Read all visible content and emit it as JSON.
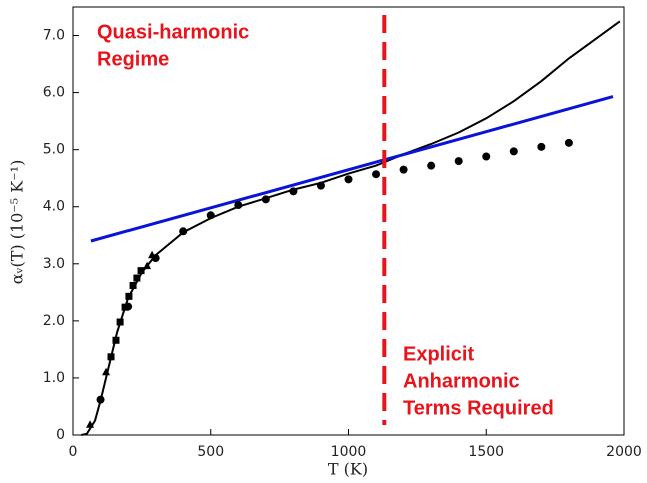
{
  "chart_data": {
    "type": "line",
    "xlabel": "T (K)",
    "ylabel": "αᵥ(T) (10⁻⁵ K⁻¹)",
    "xlim": [
      0,
      2000
    ],
    "ylim": [
      0,
      7.5
    ],
    "xticks": [
      0,
      500,
      1000,
      1500,
      2000
    ],
    "yticks": [
      0,
      {
        "value": 1,
        "label": "1.0"
      },
      {
        "value": 2,
        "label": "2.0"
      },
      {
        "value": 3,
        "label": "3.0"
      },
      {
        "value": 4,
        "label": "4.0"
      },
      {
        "value": 5,
        "label": "5.0"
      },
      {
        "value": 6,
        "label": "6.0"
      },
      {
        "value": 7,
        "label": "7.0"
      }
    ],
    "series": [
      {
        "style": "line",
        "color": "#000000",
        "x": [
          30,
          50,
          80,
          100,
          130,
          160,
          200,
          250,
          300,
          400,
          500,
          600,
          700,
          800,
          900,
          1000,
          1100,
          1200,
          1300,
          1400,
          1500,
          1600,
          1700,
          1800,
          1900,
          1985
        ],
        "values": [
          0,
          0.02,
          0.25,
          0.6,
          1.2,
          1.8,
          2.4,
          2.85,
          3.15,
          3.55,
          3.8,
          4.0,
          4.15,
          4.3,
          4.42,
          4.58,
          4.72,
          4.92,
          5.1,
          5.3,
          5.55,
          5.85,
          6.2,
          6.6,
          6.95,
          7.25
        ]
      },
      {
        "style": "line",
        "color": "#0a14d8",
        "x": [
          65,
          1960
        ],
        "values": [
          3.4,
          5.93
        ]
      },
      {
        "style": "circle",
        "color": "#000000",
        "x": [
          100,
          200,
          300,
          400,
          500,
          600,
          700,
          800,
          900,
          1000,
          1100,
          1200,
          1300,
          1400,
          1500,
          1600,
          1700,
          1800
        ],
        "values": [
          0.62,
          2.25,
          3.1,
          3.57,
          3.85,
          4.03,
          4.13,
          4.27,
          4.37,
          4.48,
          4.57,
          4.65,
          4.72,
          4.8,
          4.88,
          4.97,
          5.05,
          5.12
        ]
      },
      {
        "style": "square",
        "color": "#000000",
        "x": [
          138,
          156,
          171,
          189,
          203,
          218,
          232,
          247
        ],
        "values": [
          1.37,
          1.66,
          1.98,
          2.24,
          2.43,
          2.62,
          2.75,
          2.88
        ]
      },
      {
        "style": "triangle",
        "color": "#000000",
        "x": [
          62,
          120,
          269,
          287
        ],
        "values": [
          0.18,
          1.1,
          2.96,
          3.15
        ]
      }
    ],
    "vline": {
      "x": 1130,
      "color": "#e8141c"
    },
    "annotations": [
      [
        "Quasi-harmonic",
        "Regime"
      ],
      [
        "Explicit",
        "Anharmonic",
        "Terms Required"
      ]
    ],
    "annotation_color": "#e8141c"
  }
}
